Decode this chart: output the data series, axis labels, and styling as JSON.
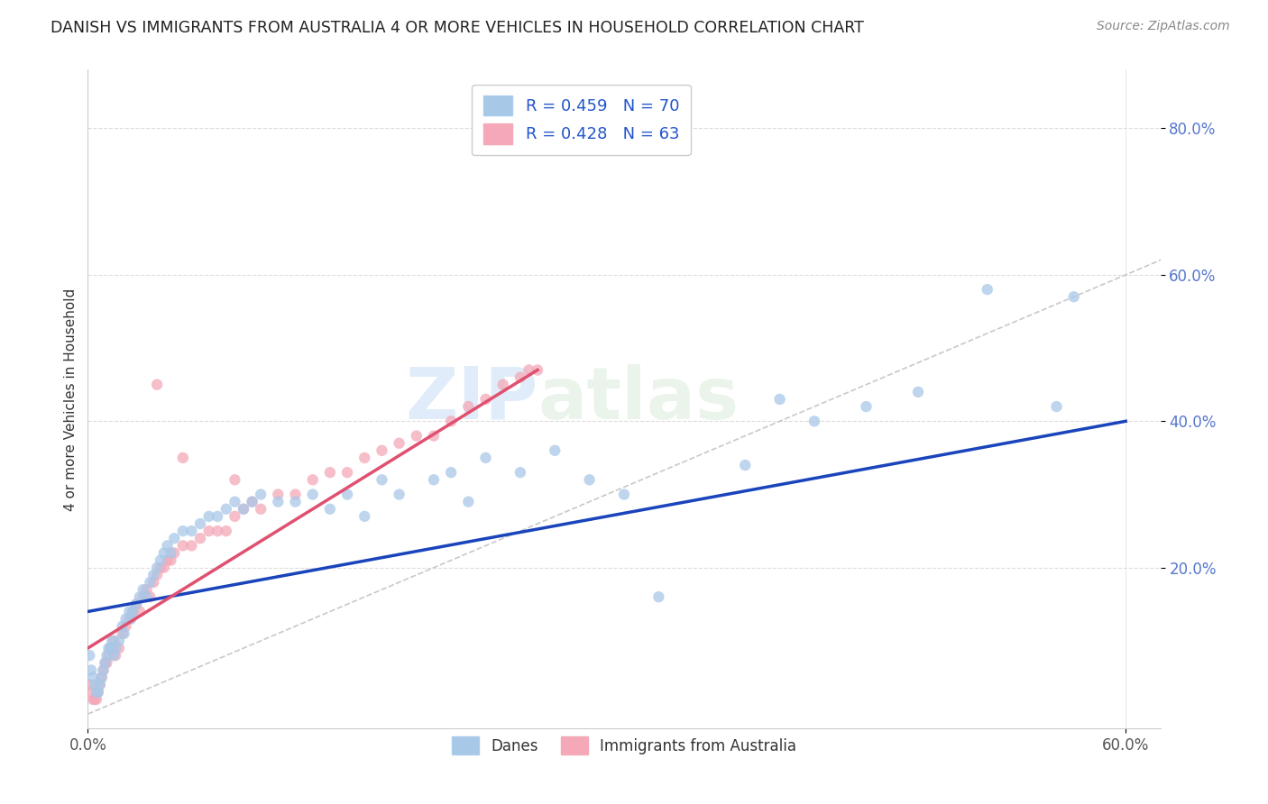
{
  "title": "DANISH VS IMMIGRANTS FROM AUSTRALIA 4 OR MORE VEHICLES IN HOUSEHOLD CORRELATION CHART",
  "source": "Source: ZipAtlas.com",
  "ylabel": "4 or more Vehicles in Household",
  "xlim": [
    0.0,
    0.62
  ],
  "ylim": [
    -0.02,
    0.88
  ],
  "xtick_vals": [
    0.0,
    0.6
  ],
  "xtick_labels": [
    "0.0%",
    "60.0%"
  ],
  "ytick_vals": [
    0.2,
    0.4,
    0.6,
    0.8
  ],
  "ytick_labels": [
    "20.0%",
    "40.0%",
    "60.0%",
    "80.0%"
  ],
  "legend_blue_label": "R = 0.459   N = 70",
  "legend_pink_label": "R = 0.428   N = 63",
  "legend_bottom_danes": "Danes",
  "legend_bottom_immigrants": "Immigrants from Australia",
  "blue_color": "#A8C8E8",
  "pink_color": "#F4A8B8",
  "blue_line_color": "#1A44BB",
  "pink_line_color": "#E05070",
  "diagonal_color": "#BBBBBB",
  "watermark_zip": "ZIP",
  "watermark_atlas": "atlas",
  "danes_x": [
    0.001,
    0.002,
    0.003,
    0.004,
    0.005,
    0.006,
    0.007,
    0.008,
    0.009,
    0.01,
    0.011,
    0.012,
    0.013,
    0.014,
    0.015,
    0.016,
    0.018,
    0.02,
    0.021,
    0.022,
    0.024,
    0.025,
    0.026,
    0.028,
    0.03,
    0.032,
    0.034,
    0.036,
    0.038,
    0.04,
    0.042,
    0.044,
    0.046,
    0.048,
    0.05,
    0.055,
    0.06,
    0.065,
    0.07,
    0.075,
    0.08,
    0.085,
    0.09,
    0.095,
    0.1,
    0.11,
    0.12,
    0.13,
    0.14,
    0.15,
    0.16,
    0.17,
    0.18,
    0.2,
    0.21,
    0.22,
    0.23,
    0.25,
    0.27,
    0.29,
    0.31,
    0.33,
    0.38,
    0.4,
    0.42,
    0.45,
    0.48,
    0.52,
    0.56,
    0.57
  ],
  "danes_y": [
    0.08,
    0.06,
    0.05,
    0.04,
    0.03,
    0.03,
    0.04,
    0.05,
    0.06,
    0.07,
    0.08,
    0.09,
    0.09,
    0.1,
    0.08,
    0.09,
    0.1,
    0.12,
    0.11,
    0.13,
    0.14,
    0.13,
    0.14,
    0.15,
    0.16,
    0.17,
    0.16,
    0.18,
    0.19,
    0.2,
    0.21,
    0.22,
    0.23,
    0.22,
    0.24,
    0.25,
    0.25,
    0.26,
    0.27,
    0.27,
    0.28,
    0.29,
    0.28,
    0.29,
    0.3,
    0.29,
    0.29,
    0.3,
    0.28,
    0.3,
    0.27,
    0.32,
    0.3,
    0.32,
    0.33,
    0.29,
    0.35,
    0.33,
    0.36,
    0.32,
    0.3,
    0.16,
    0.34,
    0.43,
    0.4,
    0.42,
    0.44,
    0.58,
    0.42,
    0.57
  ],
  "immigrants_x": [
    0.001,
    0.002,
    0.003,
    0.004,
    0.005,
    0.006,
    0.007,
    0.008,
    0.009,
    0.01,
    0.011,
    0.012,
    0.013,
    0.014,
    0.015,
    0.016,
    0.018,
    0.02,
    0.022,
    0.024,
    0.026,
    0.028,
    0.03,
    0.032,
    0.034,
    0.036,
    0.038,
    0.04,
    0.042,
    0.044,
    0.046,
    0.048,
    0.05,
    0.055,
    0.06,
    0.065,
    0.07,
    0.075,
    0.08,
    0.085,
    0.09,
    0.095,
    0.1,
    0.11,
    0.12,
    0.13,
    0.14,
    0.15,
    0.16,
    0.17,
    0.18,
    0.19,
    0.2,
    0.21,
    0.22,
    0.23,
    0.24,
    0.25,
    0.255,
    0.26,
    0.04,
    0.055,
    0.085
  ],
  "immigrants_y": [
    0.04,
    0.03,
    0.02,
    0.02,
    0.02,
    0.03,
    0.04,
    0.05,
    0.06,
    0.07,
    0.07,
    0.08,
    0.09,
    0.09,
    0.1,
    0.08,
    0.09,
    0.11,
    0.12,
    0.13,
    0.14,
    0.15,
    0.14,
    0.16,
    0.17,
    0.16,
    0.18,
    0.19,
    0.2,
    0.2,
    0.21,
    0.21,
    0.22,
    0.23,
    0.23,
    0.24,
    0.25,
    0.25,
    0.25,
    0.27,
    0.28,
    0.29,
    0.28,
    0.3,
    0.3,
    0.32,
    0.33,
    0.33,
    0.35,
    0.36,
    0.37,
    0.38,
    0.38,
    0.4,
    0.42,
    0.43,
    0.45,
    0.46,
    0.47,
    0.47,
    0.45,
    0.35,
    0.32
  ],
  "blue_line_x": [
    0.0,
    0.6
  ],
  "blue_line_y": [
    0.14,
    0.4
  ],
  "pink_line_x": [
    0.0,
    0.26
  ],
  "pink_line_y": [
    0.09,
    0.47
  ]
}
